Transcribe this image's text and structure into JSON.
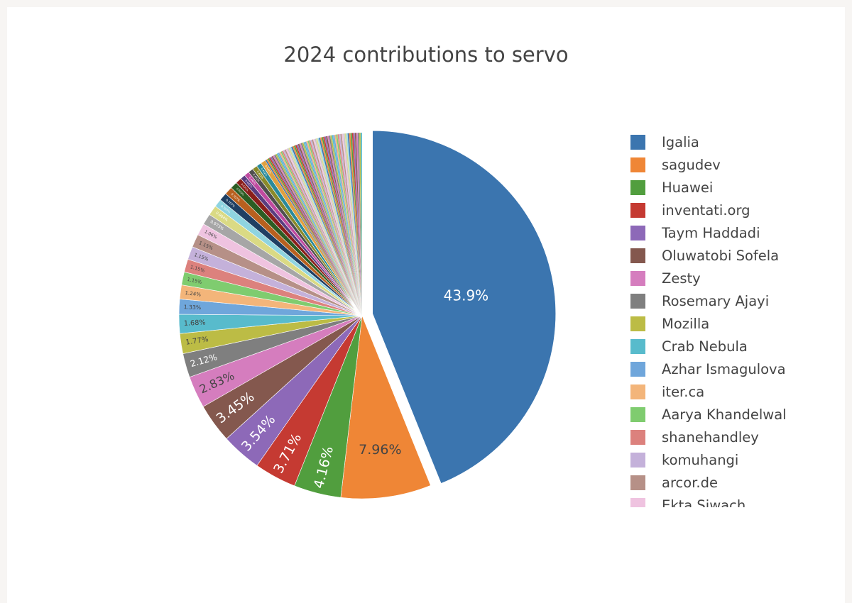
{
  "colors": {
    "page_bg": "#f7f5f3",
    "card_bg": "#ffffff",
    "title": "#444444",
    "label_dark": "#444444",
    "label_light": "#ffffff"
  },
  "chart_data": {
    "type": "pie",
    "title": "2024 contributions to servo",
    "pulled_slice": "Igalia",
    "direction": "clockwise",
    "start": "top",
    "named_slices": [
      {
        "name": "Igalia",
        "percent": 43.9,
        "label": "43.9%",
        "color": "#3b75af",
        "label_color": "#ffffff"
      },
      {
        "name": "sagudev",
        "percent": 7.96,
        "label": "7.96%",
        "color": "#ef8636",
        "label_color": "#444444"
      },
      {
        "name": "Huawei",
        "percent": 4.16,
        "label": "4.16%",
        "color": "#519e3e",
        "label_color": "#ffffff"
      },
      {
        "name": "inventati.org",
        "percent": 3.71,
        "label": "3.71%",
        "color": "#c53a32",
        "label_color": "#ffffff"
      },
      {
        "name": "Taym Haddadi",
        "percent": 3.54,
        "label": "3.54%",
        "color": "#8d69b8",
        "label_color": "#ffffff"
      },
      {
        "name": "Oluwatobi Sofela",
        "percent": 3.45,
        "label": "3.45%",
        "color": "#84584e",
        "label_color": "#ffffff"
      },
      {
        "name": "Zesty",
        "percent": 2.83,
        "label": "2.83%",
        "color": "#d57dbe",
        "label_color": "#444444"
      },
      {
        "name": "Rosemary Ajayi",
        "percent": 2.12,
        "label": "2.12%",
        "color": "#7f7f7f",
        "label_color": "#ffffff"
      },
      {
        "name": "Mozilla",
        "percent": 1.77,
        "label": "1.77%",
        "color": "#bcbc45",
        "label_color": "#444444"
      },
      {
        "name": "Crab Nebula",
        "percent": 1.68,
        "label": "1.68%",
        "color": "#58bbcc",
        "label_color": "#444444"
      },
      {
        "name": "Azhar Ismagulova",
        "percent": 1.33,
        "label": "1.33%",
        "color": "#6fa6db",
        "label_color": "#444444"
      },
      {
        "name": "iter.ca",
        "percent": 1.24,
        "label": "1.24%",
        "color": "#f3b57a",
        "label_color": "#444444"
      },
      {
        "name": "Aarya Khandelwal",
        "percent": 1.15,
        "label": "1.15%",
        "color": "#7fcc6f",
        "label_color": "#444444"
      },
      {
        "name": "shanehandley",
        "percent": 1.15,
        "label": "1.15%",
        "color": "#dc817d",
        "label_color": "#444444"
      },
      {
        "name": "komuhangi",
        "percent": 1.15,
        "label": "1.15%",
        "color": "#c4b1da",
        "label_color": "#444444"
      },
      {
        "name": "arcor.de",
        "percent": 1.15,
        "label": "1.15%",
        "color": "#b69087",
        "label_color": "#444444"
      },
      {
        "name": "Ekta Siwach",
        "percent": 1.06,
        "label": "1.06%",
        "color": "#efc3e0",
        "label_color": "#444444"
      }
    ],
    "small_slices": [
      {
        "percent": 0.973,
        "label": "0.973%",
        "color": "#a6a6a6"
      },
      {
        "percent": 0.884,
        "label": "0.884%",
        "color": "#dada84"
      },
      {
        "percent": 0.707,
        "label": "0.707%",
        "color": "#8fd4e0"
      },
      {
        "percent": 0.707,
        "label": "0.707%",
        "color": "#1f3f63"
      },
      {
        "percent": 0.707,
        "label": "0.707%",
        "color": "#b8601f"
      },
      {
        "percent": 0.619,
        "label": "0.619%",
        "color": "#2c5d23"
      },
      {
        "percent": 0.531,
        "label": "0.531%",
        "color": "#8b1f1a"
      },
      {
        "percent": 0.442,
        "label": "0.442%",
        "color": "#5a3d80"
      },
      {
        "percent": 0.442,
        "label": "0.442%",
        "color": "#c04aa0"
      },
      {
        "percent": 0.442,
        "label": "0.442%",
        "color": "#4f4f4f"
      },
      {
        "percent": 0.442,
        "label": "0.442%",
        "color": "#8a8a2a"
      },
      {
        "percent": 0.442,
        "label": "0.442%",
        "color": "#2a8a9a"
      },
      {
        "percent": 0.442,
        "label": "0.442%",
        "color": "#e0a040"
      }
    ],
    "remaining_tiny_slices": {
      "count": 70,
      "palette": [
        "#3b75af",
        "#ef8636",
        "#519e3e",
        "#c53a32",
        "#8d69b8",
        "#84584e",
        "#d57dbe",
        "#7f7f7f",
        "#bcbc45",
        "#58bbcc",
        "#6fa6db",
        "#f3b57a",
        "#7fcc6f",
        "#dc817d",
        "#c4b1da",
        "#b69087",
        "#efc3e0",
        "#c7c7c7",
        "#dbdb8d",
        "#9edae5"
      ]
    }
  }
}
